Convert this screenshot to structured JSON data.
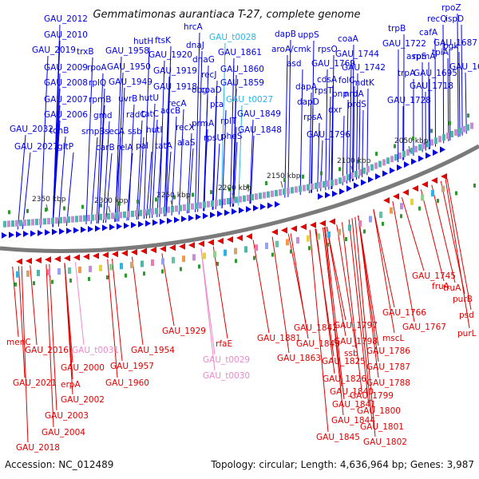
{
  "title": "Gemmatimonas aurantiaca T-27, complete genome",
  "footer": {
    "accession": "Accession: NC_012489",
    "stats": "Topology: circular; Length: 4,636,964 bp; Genes: 3,987"
  },
  "colors": {
    "forward": "#0000e0",
    "reverse": "#e00000",
    "rna": "#2ab4e8",
    "trna_reverse": "#ee88cc",
    "backbone": "#7a7a7a"
  },
  "kbp_labels": [
    "2350 kbp",
    "2300 kbp",
    "2250 kbp",
    "2200 kbp",
    "2150 kbp",
    "2100 kbp",
    "2050 kbp"
  ],
  "forward_genes": [
    "GAU_2012",
    "GAU_2010",
    "GAU_2019",
    "GAU_2009",
    "GAU_2008",
    "GAU_2007",
    "GAU_2006",
    "GAU_2032",
    "GAU_2027",
    "tonB",
    "gltP",
    "trxB",
    "rpoA",
    "rplQ",
    "rpmB",
    "gmd",
    "smpB",
    "carB",
    "GAU_1958",
    "GAU_1950",
    "GAU_1949",
    "uvrB",
    "radC",
    "secA",
    "relA",
    "hutH",
    "ftsK",
    "hutU",
    "tatC",
    "ssb",
    "hutI",
    "pal",
    "tatA",
    "hrcA",
    "dnaJ",
    "GAU_1920",
    "GAU_1919",
    "GAU_1918",
    "accB",
    "recA",
    "recX",
    "alaS",
    "dnaG",
    "recJ",
    "obg",
    "coaD",
    "prmA",
    "rpsU",
    "pta",
    "rplT",
    "pheS",
    "GAU_t0028",
    "GAU_1861",
    "GAU_1860",
    "GAU_1859",
    "GAU_t0027",
    "GAU_1849",
    "GAU_1848",
    "dapB",
    "uppS",
    "aroA/cmk",
    "rpsO",
    "asd",
    "GAU_1769",
    "dapA",
    "cdsA",
    "rpsT",
    "dapD",
    "pnp",
    "dxr",
    "rpsA",
    "GAU_1796",
    "coaA",
    "GAU_1744",
    "trpB",
    "GAU_1722",
    "GAU_1742",
    "folC",
    "mdtK",
    "nrdA",
    "proS",
    "rpoZ",
    "recQ",
    "ispD",
    "cafA",
    "GAU_1687",
    "pgk",
    "aspS",
    "rpmA",
    "tpiA",
    "GAU_1674",
    "trpA",
    "GAU_1718",
    "GAU_1695",
    "GAU_1728"
  ],
  "reverse_genes": [
    "menC",
    "GAU_2016",
    "GAU_2021",
    "GAU_2018",
    "GAU_t0031",
    "GAU_2000",
    "erpA",
    "GAU_2002",
    "GAU_2003",
    "GAU_2004",
    "GAU_1954",
    "GAU_1957",
    "GAU_1960",
    "GAU_1929",
    "rfaE",
    "GAU_t0029",
    "GAU_t0030",
    "GAU_1881",
    "GAU_1863",
    "GAU_1842",
    "GAU_1797",
    "GAU_1843",
    "GAU_1798",
    "GAU_1825",
    "ssb",
    "GAU_1786",
    "GAU_1826",
    "GAU_1787",
    "GAU_1840",
    "GAU_1788",
    "GAU_1799",
    "GAU_1841",
    "GAU_1800",
    "GAU_1844",
    "GAU_1801",
    "GAU_1845",
    "GAU_1802",
    "GAU_1766",
    "mscL",
    "GAU_1767",
    "GAU_1745",
    "truA",
    "fruA",
    "purB",
    "psd",
    "purL"
  ]
}
